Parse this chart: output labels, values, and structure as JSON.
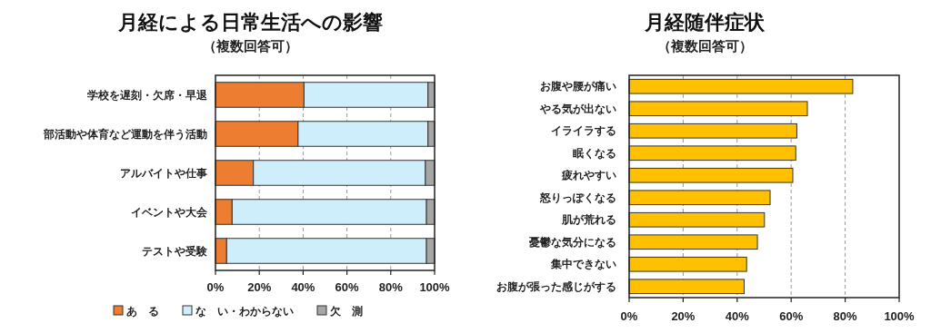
{
  "chart_data": [
    {
      "type": "bar",
      "orientation": "horizontal",
      "stacked": true,
      "title": "月経による日常生活への影響",
      "subtitle": "（複数回答可）",
      "categories": [
        "学校を遅刻・欠席・早退",
        "部活動や体育など運動を伴う活動",
        "アルバイトや仕事",
        "イベントや大会",
        "テストや受験"
      ],
      "series": [
        {
          "name": "あ　る",
          "color": "#ed7d31",
          "values": [
            40.4,
            37.7,
            17.3,
            7.6,
            5.1
          ]
        },
        {
          "name": "な　い・わからない",
          "color": "#cdeefa",
          "values": [
            56.6,
            59.3,
            78.5,
            88.7,
            91.2
          ]
        },
        {
          "name": "欠　測",
          "color": "#a6a6a6",
          "values": [
            3,
            3,
            4.2,
            3.7,
            3.7
          ]
        }
      ],
      "xlim": [
        0,
        100
      ],
      "xticks": [
        {
          "value": 0,
          "label": "0%"
        },
        {
          "value": 20,
          "label": "20%"
        },
        {
          "value": 40,
          "label": "40%"
        },
        {
          "value": 60,
          "label": "60%"
        },
        {
          "value": 80,
          "label": "80%"
        },
        {
          "value": 100,
          "label": "100%"
        }
      ],
      "grid": "x",
      "legend": "bottom"
    },
    {
      "type": "bar",
      "orientation": "horizontal",
      "title": "月経随伴症状",
      "subtitle": "（複数回答可）",
      "categories": [
        "お腹や腰が痛い",
        "やる気が出ない",
        "イライラする",
        "眠くなる",
        "疲れやすい",
        "怒りっぽくなる",
        "肌が荒れる",
        "憂鬱な気分になる",
        "集中できない",
        "お腹が張った感じがする"
      ],
      "values": [
        82.8,
        66.0,
        62.1,
        61.7,
        60.6,
        52.2,
        50.1,
        47.5,
        43.5,
        42.6
      ],
      "color": "#ffc000",
      "xlim": [
        0,
        100
      ],
      "xticks": [
        {
          "value": 0,
          "label": "0%"
        },
        {
          "value": 20,
          "label": "20%"
        },
        {
          "value": 40,
          "label": "40%"
        },
        {
          "value": 60,
          "label": "60%"
        },
        {
          "value": 80,
          "label": "80%"
        },
        {
          "value": 100,
          "label": "100%"
        }
      ],
      "grid": "x"
    }
  ]
}
